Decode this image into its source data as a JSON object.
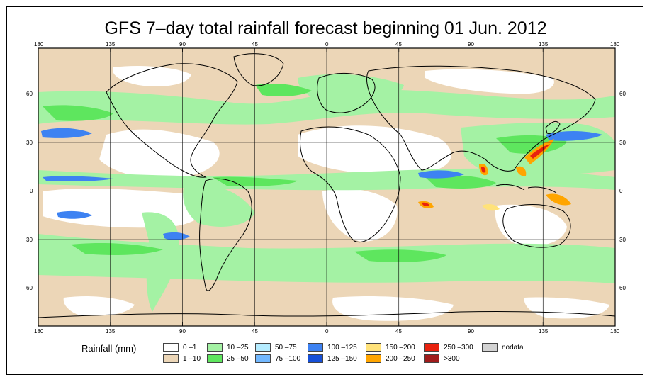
{
  "title": "GFS 7–day total rainfall forecast beginning 01 Jun. 2012",
  "axes": {
    "lon_labels": [
      "180",
      "135",
      "90",
      "45",
      "0",
      "45",
      "90",
      "135",
      "180"
    ],
    "lat_labels": [
      "60",
      "30",
      "0",
      "30",
      "60"
    ]
  },
  "legend": {
    "title": "Rainfall (mm)",
    "items": [
      {
        "label": "0 –1",
        "color": "#ffffff"
      },
      {
        "label": "1 –10",
        "color": "#ecd6b7"
      },
      {
        "label": "10 –25",
        "color": "#a4f2a4"
      },
      {
        "label": "25 –50",
        "color": "#5ee65e"
      },
      {
        "label": "50 –75",
        "color": "#b5ecff"
      },
      {
        "label": "75 –100",
        "color": "#72b8ff"
      },
      {
        "label": "100 –125",
        "color": "#3d82f2"
      },
      {
        "label": "125 –150",
        "color": "#1650d8"
      },
      {
        "label": "150 –200",
        "color": "#ffe27a"
      },
      {
        "label": "200 –250",
        "color": "#ffa500"
      },
      {
        "label": "250 –300",
        "color": "#e8220f"
      },
      {
        "label": ">300",
        "color": "#a01c1c"
      },
      {
        "label": "nodata",
        "color": "#d3d3d3"
      }
    ]
  },
  "colors": {
    "ocean_dry": "#ffffff",
    "light_rain": "#ecd6b7",
    "moderate_rain": "#a4f2a4",
    "heavy_rain": "#5ee65e",
    "coastline": "#000000",
    "grid": "#000000"
  }
}
